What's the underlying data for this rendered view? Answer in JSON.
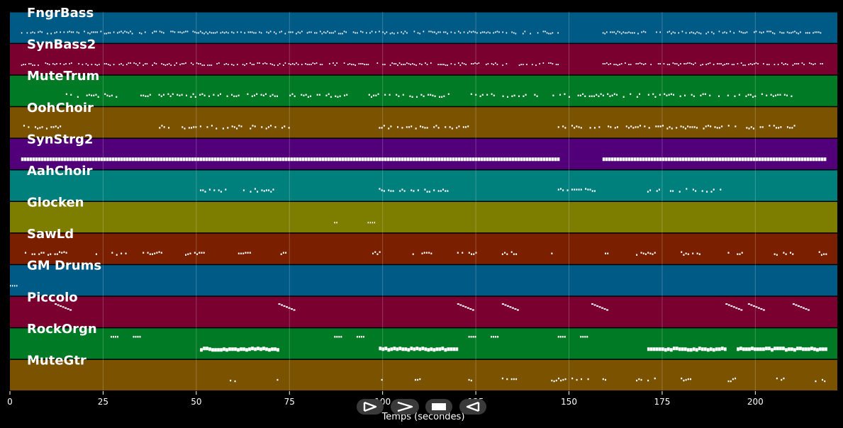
{
  "chart_data": {
    "type": "piano-roll",
    "xlabel": "Temps (secondes)",
    "xlim": [
      0,
      222
    ],
    "x_ticks": [
      0,
      25,
      50,
      75,
      100,
      125,
      150,
      175,
      200
    ],
    "grid": true,
    "tracks": [
      {
        "name": "FngrBass",
        "color": "#005a86",
        "pattern": "dense",
        "segments": [
          [
            3,
            147
          ],
          [
            159,
            218
          ]
        ]
      },
      {
        "name": "SynBass2",
        "color": "#7a0030",
        "pattern": "dense",
        "segments": [
          [
            3,
            147
          ],
          [
            159,
            218
          ]
        ]
      },
      {
        "name": "MuteTrum",
        "color": "#007a25",
        "pattern": "sparse",
        "segments": [
          [
            15,
            29
          ],
          [
            35,
            72
          ],
          [
            75,
            91
          ],
          [
            95,
            118
          ],
          [
            123,
            142
          ],
          [
            145,
            210
          ]
        ]
      },
      {
        "name": "OohChoir",
        "color": "#7a5200",
        "pattern": "sparse",
        "segments": [
          [
            3,
            15
          ],
          [
            40,
            75
          ],
          [
            99,
            123
          ],
          [
            147,
            212
          ]
        ]
      },
      {
        "name": "SynStrg2",
        "color": "#52007a",
        "pattern": "solid",
        "segments": [
          [
            3,
            147
          ],
          [
            159,
            219
          ]
        ]
      },
      {
        "name": "AahChoir",
        "color": "#00807d",
        "pattern": "sparse",
        "segments": [
          [
            51,
            71
          ],
          [
            99,
            119
          ],
          [
            147,
            157
          ],
          [
            171,
            191
          ]
        ]
      },
      {
        "name": "Glocken",
        "color": "#7d7d00",
        "pattern": "dots",
        "segments": [
          [
            87,
            88
          ],
          [
            96,
            98
          ]
        ]
      },
      {
        "name": "SawLd",
        "color": "#7a2000",
        "pattern": "clusters",
        "segments": [
          [
            4,
            16
          ],
          [
            23,
            31
          ],
          [
            35,
            41
          ],
          [
            47,
            53
          ],
          [
            60,
            65
          ],
          [
            72,
            75
          ],
          [
            88,
            89
          ],
          [
            96,
            101
          ],
          [
            108,
            113
          ],
          [
            120,
            125
          ],
          [
            132,
            136
          ],
          [
            144,
            147
          ],
          [
            159,
            161
          ],
          [
            168,
            173
          ],
          [
            180,
            185
          ],
          [
            192,
            198
          ],
          [
            205,
            210
          ],
          [
            217,
            219
          ]
        ]
      },
      {
        "name": "GM Drums",
        "color": "#005a86",
        "pattern": "dots",
        "segments": [
          [
            0,
            2
          ]
        ]
      },
      {
        "name": "Piccolo",
        "color": "#7a0030",
        "pattern": "slant",
        "segments": [
          [
            12,
            16
          ],
          [
            72,
            76
          ],
          [
            120,
            124
          ],
          [
            132,
            136
          ],
          [
            156,
            160
          ],
          [
            192,
            196
          ],
          [
            198,
            202
          ],
          [
            210,
            214
          ]
        ]
      },
      {
        "name": "RockOrgn",
        "color": "#007a25",
        "pattern": "mixed",
        "segments": [
          [
            27,
            29
          ],
          [
            33,
            35
          ],
          [
            51,
            72
          ],
          [
            87,
            89
          ],
          [
            93,
            95
          ],
          [
            99,
            120
          ],
          [
            123,
            125
          ],
          [
            129,
            131
          ],
          [
            147,
            149
          ],
          [
            153,
            155
          ],
          [
            171,
            192
          ],
          [
            195,
            219
          ]
        ]
      },
      {
        "name": "MuteGtr",
        "color": "#7a5200",
        "pattern": "sparse",
        "segments": [
          [
            59,
            62
          ],
          [
            71,
            72
          ],
          [
            99,
            100
          ],
          [
            108,
            112
          ],
          [
            123,
            124
          ],
          [
            132,
            136
          ],
          [
            144,
            156
          ],
          [
            159,
            160
          ],
          [
            168,
            173
          ],
          [
            180,
            185
          ],
          [
            192,
            196
          ],
          [
            205,
            209
          ],
          [
            216,
            219
          ]
        ]
      }
    ]
  },
  "transport": [
    {
      "name": "play-icon"
    },
    {
      "name": "fast-forward-icon"
    },
    {
      "name": "stop-icon"
    },
    {
      "name": "rewind-icon"
    }
  ]
}
